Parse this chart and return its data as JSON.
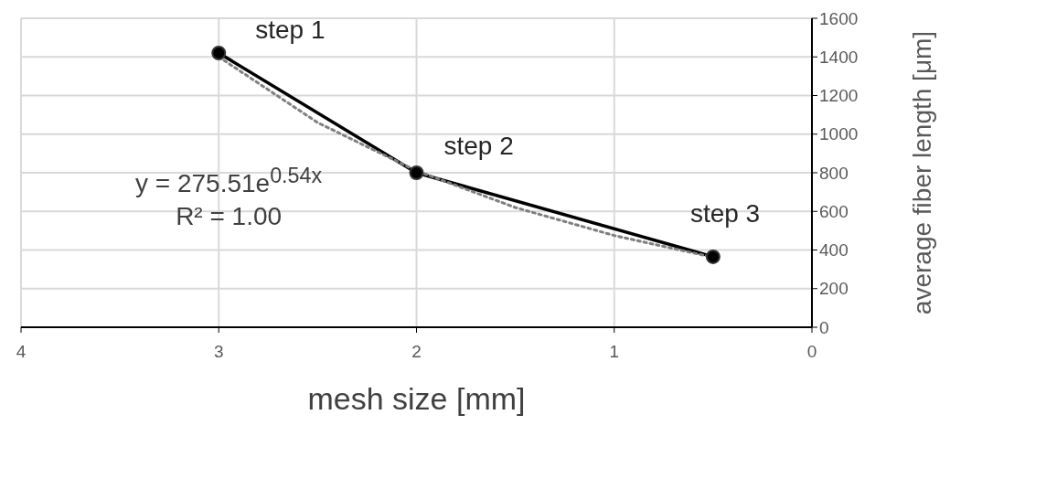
{
  "chart_data": {
    "type": "line",
    "xlabel": "mesh size [mm]",
    "ylabel": "average fiber length [μm]",
    "xlim": [
      4,
      0
    ],
    "xticks": [
      4,
      3,
      2,
      1,
      0
    ],
    "ylim": [
      0,
      1600
    ],
    "yticks": [
      0,
      200,
      400,
      600,
      800,
      1000,
      1200,
      1400,
      1600
    ],
    "grid": true,
    "legend": false,
    "marker": "circle",
    "series": [
      {
        "color": "#000000",
        "x": [
          3,
          2,
          0.5
        ],
        "values": [
          1420,
          800,
          365
        ]
      },
      {
        "type": "line",
        "color": "#7f7f7f",
        "line_style": "dotted",
        "marker": "none",
        "x": [
          3,
          2.5,
          2,
          1.5,
          1,
          0.5
        ],
        "values": [
          1400,
          1060,
          810,
          620,
          475,
          362
        ]
      }
    ],
    "annotations": [
      {
        "text": "step 1",
        "x": 3,
        "y": 1420
      },
      {
        "text": "step 2",
        "x": 2,
        "y": 800
      },
      {
        "text": "step 3",
        "x": 0.5,
        "y": 365
      },
      "y = 275.51e$^{0.54x}$",
      "R² = 1.00"
    ]
  }
}
